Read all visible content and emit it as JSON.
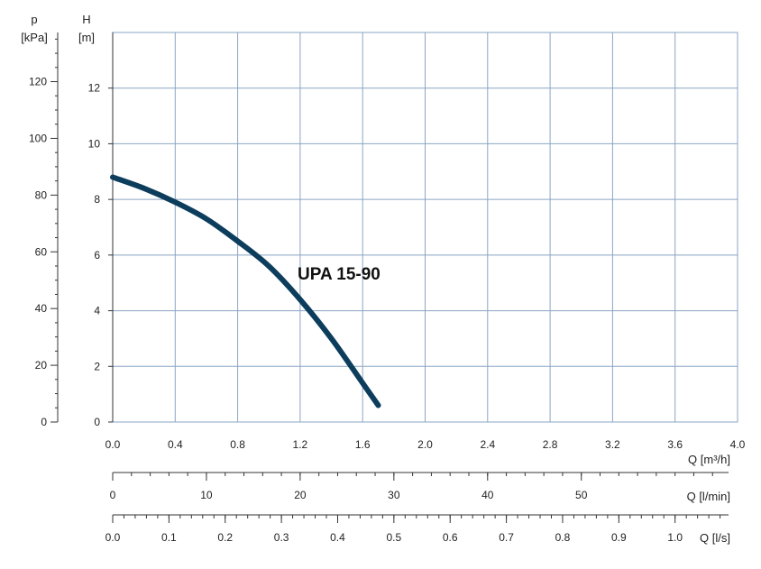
{
  "chart_data": {
    "type": "line",
    "annotation": "UPA 15-90",
    "x_axis": {
      "label": "Q [m³/h]",
      "range": [
        0,
        4.0
      ],
      "ticks": [
        0,
        0.4,
        0.8,
        1.2,
        1.6,
        2.0,
        2.4,
        2.8,
        3.2,
        3.6,
        4.0
      ],
      "tick_labels": [
        "0.0",
        "0.4",
        "0.8",
        "1.2",
        "1.6",
        "2.0",
        "2.4",
        "2.8",
        "3.2",
        "3.6",
        "4.0"
      ]
    },
    "y_axis_head": {
      "label_top": "H",
      "label_unit": "[m]",
      "range": [
        0,
        14
      ],
      "ticks": [
        0,
        2,
        4,
        6,
        8,
        10,
        12
      ],
      "tick_labels": [
        "0",
        "2",
        "4",
        "6",
        "8",
        "10",
        "12"
      ]
    },
    "y_axis_pressure": {
      "label_top": "p",
      "label_unit": "[kPa]",
      "ticks": [
        0,
        20,
        40,
        60,
        80,
        100,
        120
      ],
      "tick_labels": [
        "0",
        "20",
        "40",
        "60",
        "80",
        "100",
        "120"
      ]
    },
    "secondary_x_axes": [
      {
        "label": "Q [l/min]",
        "max": 66.67,
        "ticks": [
          0,
          10,
          20,
          30,
          40,
          50
        ],
        "tick_labels": [
          "0",
          "10",
          "20",
          "30",
          "40",
          "50"
        ],
        "minor_step": 2
      },
      {
        "label": "Q [l/s]",
        "max": 1.1111,
        "ticks": [
          0,
          0.1,
          0.2,
          0.3,
          0.4,
          0.5,
          0.6,
          0.7,
          0.8,
          0.9,
          1.0
        ],
        "tick_labels": [
          "0.0",
          "0.1",
          "0.2",
          "0.3",
          "0.4",
          "0.5",
          "0.6",
          "0.7",
          "0.8",
          "0.9",
          "1.0"
        ],
        "minor_step": 0.02
      }
    ],
    "grid": true,
    "series": [
      {
        "color": "#0d3d5c",
        "x": [
          0.0,
          0.2,
          0.4,
          0.6,
          0.8,
          1.0,
          1.2,
          1.4,
          1.6,
          1.7
        ],
        "y": [
          8.8,
          8.4,
          7.9,
          7.3,
          6.5,
          5.6,
          4.4,
          3.0,
          1.4,
          0.6
        ]
      }
    ],
    "colors": {
      "grid": "#8aa5c4",
      "curve": "#0d3d5c"
    }
  }
}
